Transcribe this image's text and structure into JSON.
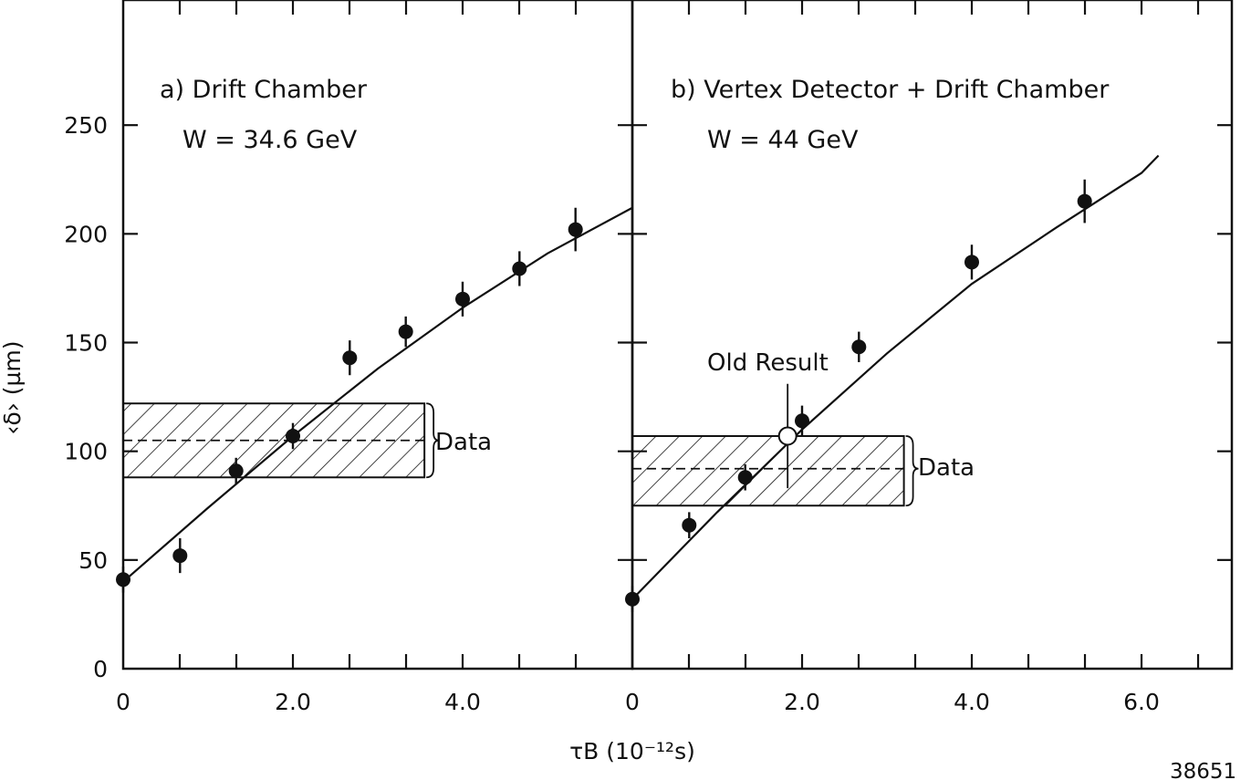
{
  "chart_data": [
    {
      "type": "scatter",
      "title": "a) Drift Chamber",
      "subtitle": "W = 34.6 GeV",
      "xlabel": "τB (10⁻¹²s)",
      "ylabel": "‹δ› (µm)",
      "xlim": [
        0,
        6.0
      ],
      "ylim": [
        0,
        300
      ],
      "x_ticks": [
        "0",
        "2.0",
        "4.0"
      ],
      "y_ticks": [
        "0",
        "50",
        "100",
        "150",
        "200",
        "250"
      ],
      "grid": false,
      "points": [
        {
          "x": 0.0,
          "y": 41,
          "err": 6
        },
        {
          "x": 0.67,
          "y": 52,
          "err": 8
        },
        {
          "x": 1.33,
          "y": 91,
          "err": 6
        },
        {
          "x": 2.0,
          "y": 107,
          "err": 6
        },
        {
          "x": 2.67,
          "y": 143,
          "err": 8
        },
        {
          "x": 3.33,
          "y": 155,
          "err": 7
        },
        {
          "x": 4.0,
          "y": 170,
          "err": 8
        },
        {
          "x": 4.67,
          "y": 184,
          "err": 8
        },
        {
          "x": 5.33,
          "y": 202,
          "err": 10
        }
      ],
      "fit_curve": [
        [
          0,
          40
        ],
        [
          1,
          74
        ],
        [
          2,
          107
        ],
        [
          3,
          138
        ],
        [
          4,
          166
        ],
        [
          5,
          191
        ],
        [
          6,
          212
        ]
      ],
      "data_band": {
        "label": "Data",
        "y_center": 105,
        "y_low": 88,
        "y_high": 122,
        "x_max": 3.55
      }
    },
    {
      "type": "scatter",
      "title": "b) Vertex Detector + Drift Chamber",
      "subtitle": "W = 44 GeV",
      "xlabel": "τB (10⁻¹²s)",
      "ylabel": "‹δ› (µm)",
      "xlim": [
        0,
        7.0
      ],
      "ylim": [
        0,
        300
      ],
      "x_ticks": [
        "0",
        "2.0",
        "4.0",
        "6.0"
      ],
      "grid": false,
      "points": [
        {
          "x": 0.0,
          "y": 32,
          "err": 6
        },
        {
          "x": 0.67,
          "y": 66,
          "err": 6
        },
        {
          "x": 1.33,
          "y": 88,
          "err": 6
        },
        {
          "x": 2.0,
          "y": 114,
          "err": 7
        },
        {
          "x": 2.67,
          "y": 148,
          "err": 7
        },
        {
          "x": 4.0,
          "y": 187,
          "err": 8
        },
        {
          "x": 5.33,
          "y": 215,
          "err": 10
        }
      ],
      "old_result": {
        "label": "Old Result",
        "x": 1.83,
        "y": 107,
        "err_low": 24,
        "err_high": 24
      },
      "fit_curve": [
        [
          0,
          32
        ],
        [
          1,
          72
        ],
        [
          2,
          110
        ],
        [
          3,
          145
        ],
        [
          4,
          177
        ],
        [
          5,
          203
        ],
        [
          6,
          228
        ],
        [
          6.2,
          236
        ]
      ],
      "data_band": {
        "label": "Data",
        "y_center": 92,
        "y_low": 75,
        "y_high": 107,
        "x_max": 3.2
      }
    }
  ],
  "footer": {
    "figure_number": "38651"
  }
}
